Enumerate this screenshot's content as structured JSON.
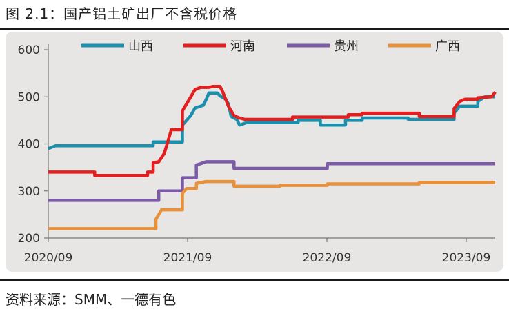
{
  "header": {
    "title": "图 2.1：国产铝土矿出厂不含税价格"
  },
  "footer": {
    "source": "资料来源：SMM、一德有色"
  },
  "chart_data": {
    "type": "line",
    "title": "",
    "xlabel": "",
    "ylabel": "",
    "ylim": [
      200,
      600
    ],
    "yticks": [
      200,
      300,
      400,
      500,
      600
    ],
    "xticks": [
      {
        "label": "2020/09",
        "x": 2020.667
      },
      {
        "label": "2021/09",
        "x": 2021.667
      },
      {
        "label": "2022/09",
        "x": 2022.667
      },
      {
        "label": "2023/09",
        "x": 2023.667
      }
    ],
    "xlim": [
      2020.667,
      2023.875
    ],
    "legend_position": "top",
    "series": [
      {
        "name": "山西",
        "color": "#1b8fab",
        "points": [
          [
            2020.667,
            390
          ],
          [
            2020.72,
            396
          ],
          [
            2021.42,
            396
          ],
          [
            2021.42,
            404
          ],
          [
            2021.63,
            404
          ],
          [
            2021.63,
            440
          ],
          [
            2021.69,
            460
          ],
          [
            2021.72,
            476
          ],
          [
            2021.78,
            482
          ],
          [
            2021.8,
            494
          ],
          [
            2021.82,
            508
          ],
          [
            2021.88,
            508
          ],
          [
            2021.9,
            502
          ],
          [
            2021.94,
            495
          ],
          [
            2021.96,
            485
          ],
          [
            2021.98,
            458
          ],
          [
            2022.02,
            452
          ],
          [
            2022.04,
            440
          ],
          [
            2022.09,
            445
          ],
          [
            2022.46,
            445
          ],
          [
            2022.46,
            450
          ],
          [
            2022.62,
            450
          ],
          [
            2022.62,
            440
          ],
          [
            2022.8,
            440
          ],
          [
            2022.8,
            450
          ],
          [
            2022.92,
            450
          ],
          [
            2022.92,
            455
          ],
          [
            2023.25,
            455
          ],
          [
            2023.25,
            452
          ],
          [
            2023.58,
            452
          ],
          [
            2023.58,
            465
          ],
          [
            2023.62,
            480
          ],
          [
            2023.75,
            480
          ],
          [
            2023.75,
            490
          ],
          [
            2023.8,
            500
          ],
          [
            2023.875,
            500
          ]
        ]
      },
      {
        "name": "河南",
        "color": "#e31e1e",
        "points": [
          [
            2020.667,
            340
          ],
          [
            2021.0,
            340
          ],
          [
            2021.0,
            333
          ],
          [
            2021.38,
            333
          ],
          [
            2021.38,
            340
          ],
          [
            2021.42,
            340
          ],
          [
            2021.42,
            360
          ],
          [
            2021.46,
            362
          ],
          [
            2021.5,
            380
          ],
          [
            2021.55,
            430
          ],
          [
            2021.63,
            430
          ],
          [
            2021.63,
            470
          ],
          [
            2021.69,
            500
          ],
          [
            2021.72,
            515
          ],
          [
            2021.76,
            520
          ],
          [
            2021.82,
            520
          ],
          [
            2021.85,
            522
          ],
          [
            2021.9,
            522
          ],
          [
            2021.92,
            510
          ],
          [
            2021.96,
            480
          ],
          [
            2022.0,
            460
          ],
          [
            2022.04,
            455
          ],
          [
            2022.08,
            452
          ],
          [
            2022.42,
            452
          ],
          [
            2022.42,
            457
          ],
          [
            2022.82,
            457
          ],
          [
            2022.82,
            462
          ],
          [
            2022.92,
            462
          ],
          [
            2022.92,
            465
          ],
          [
            2023.33,
            465
          ],
          [
            2023.33,
            458
          ],
          [
            2023.58,
            458
          ],
          [
            2023.58,
            475
          ],
          [
            2023.62,
            490
          ],
          [
            2023.66,
            495
          ],
          [
            2023.75,
            495
          ],
          [
            2023.75,
            498
          ],
          [
            2023.85,
            500
          ],
          [
            2023.875,
            510
          ]
        ]
      },
      {
        "name": "贵州",
        "color": "#7b5aa6",
        "points": [
          [
            2020.667,
            280
          ],
          [
            2021.46,
            280
          ],
          [
            2021.46,
            300
          ],
          [
            2021.63,
            300
          ],
          [
            2021.63,
            328
          ],
          [
            2021.73,
            328
          ],
          [
            2021.73,
            355
          ],
          [
            2021.76,
            358
          ],
          [
            2021.8,
            362
          ],
          [
            2022.0,
            362
          ],
          [
            2022.0,
            348
          ],
          [
            2022.67,
            348
          ],
          [
            2022.67,
            358
          ],
          [
            2023.875,
            358
          ]
        ]
      },
      {
        "name": "广西",
        "color": "#e8913a",
        "points": [
          [
            2020.667,
            220
          ],
          [
            2021.44,
            220
          ],
          [
            2021.44,
            240
          ],
          [
            2021.48,
            260
          ],
          [
            2021.63,
            260
          ],
          [
            2021.63,
            295
          ],
          [
            2021.66,
            305
          ],
          [
            2021.73,
            305
          ],
          [
            2021.73,
            316
          ],
          [
            2021.8,
            320
          ],
          [
            2022.0,
            320
          ],
          [
            2022.0,
            310
          ],
          [
            2022.33,
            310
          ],
          [
            2022.33,
            312
          ],
          [
            2022.67,
            312
          ],
          [
            2022.67,
            315
          ],
          [
            2023.33,
            315
          ],
          [
            2023.33,
            318
          ],
          [
            2023.875,
            318
          ]
        ]
      }
    ]
  }
}
